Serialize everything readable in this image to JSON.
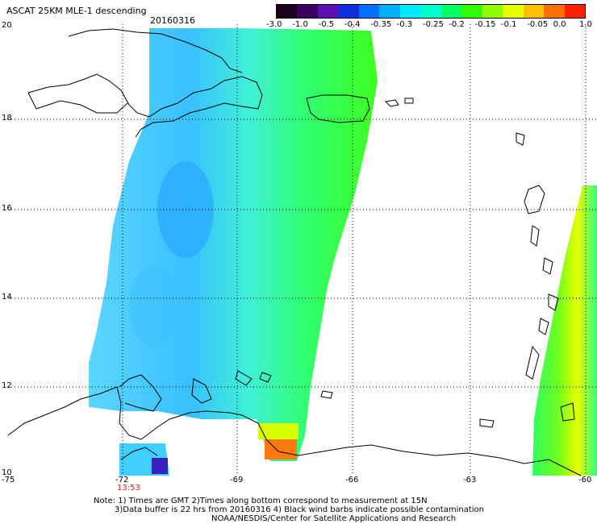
{
  "header": {
    "title": "ASCAT 25KM MLE-1 descending",
    "date": "20160316"
  },
  "colorbar": {
    "ticks": [
      "-3.0",
      "-1.0",
      "-0.5",
      "-0.4",
      "-0.35",
      "-0.3",
      "-0.25",
      "-0.2",
      "-0.15",
      "-0.1",
      "-0.05",
      "0.0",
      "1.0"
    ],
    "colors": [
      "#1a001a",
      "#3a0060",
      "#5a10b0",
      "#1030e0",
      "#0070ff",
      "#00b0ff",
      "#00e8ff",
      "#00ffcc",
      "#00ff60",
      "#30ff00",
      "#90ff00",
      "#e8ff00",
      "#ffc000",
      "#ff7000",
      "#ff2000"
    ]
  },
  "axes": {
    "lat_labels": [
      "20",
      "18",
      "16",
      "14",
      "12",
      "10"
    ],
    "lon_labels": [
      "-75",
      "-72",
      "-69",
      "-66",
      "-63",
      "-60"
    ],
    "lat_range": [
      10,
      20
    ],
    "lon_range": [
      -75,
      -60
    ]
  },
  "time_label": "13:53",
  "notes": {
    "line1": "Note: 1) Times are GMT 2)Times along bottom correspond to measurement at 15N",
    "line2": "3)Data buffer is 22 hrs from 20160316 4) Black wind barbs indicate possible contamination",
    "line3": "NOAA/NESDIS/Center for Satellite Applications and Research"
  }
}
